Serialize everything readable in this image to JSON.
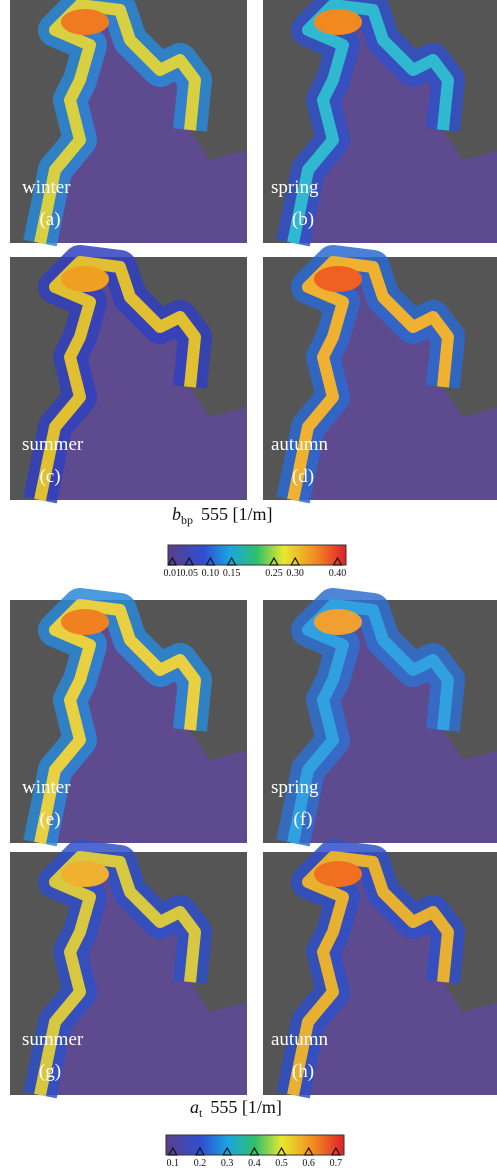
{
  "panels": [
    {
      "season": "winter",
      "label": "(a)"
    },
    {
      "season": "spring",
      "label": "(b)"
    },
    {
      "season": "summer",
      "label": "(c)"
    },
    {
      "season": "autumn",
      "label": "(d)"
    },
    {
      "season": "winter",
      "label": "(e)"
    },
    {
      "season": "spring",
      "label": "(f)"
    },
    {
      "season": "summer",
      "label": "(g)"
    },
    {
      "season": "autumn",
      "label": "(h)"
    }
  ],
  "colorbars": [
    {
      "symbol": "b",
      "subscript": "bp",
      "unit": "555 [1/m]",
      "lim": [
        0,
        0.42
      ],
      "ticks": [
        {
          "value": 0.01,
          "label": "0.01"
        },
        {
          "value": 0.05,
          "label": "0.05"
        },
        {
          "value": 0.1,
          "label": "0.10"
        },
        {
          "value": 0.15,
          "label": "0.15"
        },
        {
          "value": 0.25,
          "label": "0.25"
        },
        {
          "value": 0.3,
          "label": "0.30"
        },
        {
          "value": 0.4,
          "label": "0.40"
        }
      ]
    },
    {
      "symbol": "a",
      "subscript": "t",
      "unit": "555 [1/m]",
      "lim": [
        0.075,
        0.73
      ],
      "ticks": [
        0.1,
        0.2,
        0.3,
        0.4,
        0.5,
        0.6,
        0.7
      ]
    }
  ]
}
